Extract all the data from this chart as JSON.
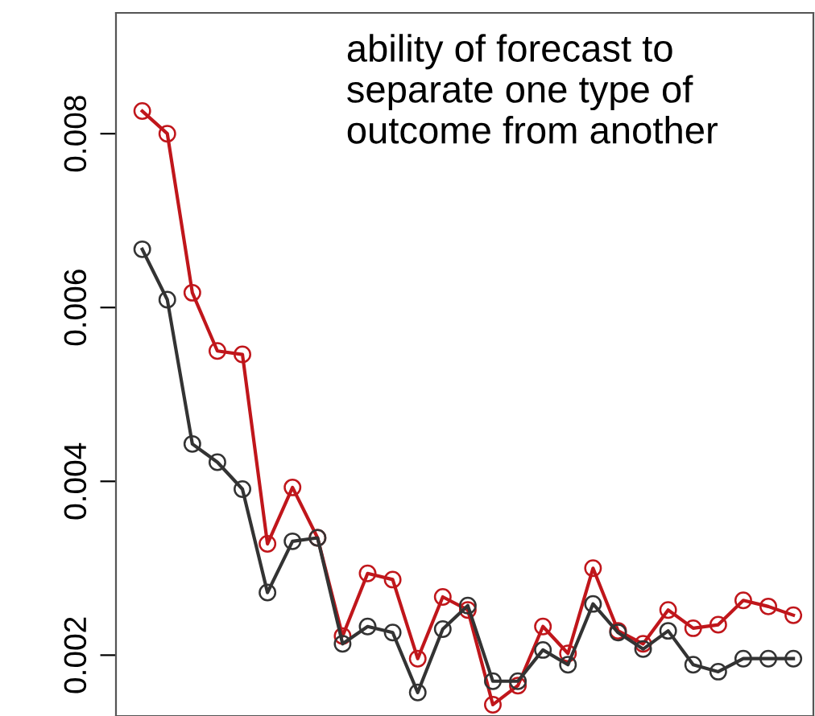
{
  "chart_data": {
    "type": "line",
    "categories": [
      null,
      null,
      null,
      null,
      null,
      null,
      null,
      null,
      null,
      null,
      null,
      null,
      null,
      null,
      null,
      null,
      null,
      null,
      null,
      null,
      null,
      null,
      null,
      null,
      null,
      null,
      null
    ],
    "series": [
      {
        "color": "#c0161b",
        "values": [
          0.00826,
          0.008,
          0.00617,
          0.0055,
          0.00546,
          0.00328,
          0.00393,
          0.00335,
          0.00222,
          0.00294,
          0.00287,
          0.00196,
          0.00267,
          0.00252,
          0.00143,
          0.00165,
          0.00233,
          0.00202,
          0.003,
          0.00228,
          0.00213,
          0.00252,
          0.00231,
          0.00235,
          0.00263,
          0.00256,
          0.00246
        ]
      },
      {
        "color": "#333333",
        "values": [
          0.00667,
          0.00609,
          0.00443,
          0.00422,
          0.00391,
          0.00272,
          0.00331,
          0.00335,
          0.00213,
          0.00233,
          0.00226,
          0.00157,
          0.0023,
          0.00257,
          0.0017,
          0.0017,
          0.00206,
          0.00189,
          0.00259,
          0.00226,
          0.00207,
          0.00228,
          0.00189,
          0.00181,
          0.00196,
          0.00196,
          0.00196
        ]
      }
    ],
    "ylim": [
      0.0013,
      0.00939
    ],
    "yticks": [
      0.002,
      0.004,
      0.006,
      0.008
    ],
    "marker": "circle",
    "line_style": "solid",
    "grid": false,
    "tick_labels": "y",
    "annotations": [
      "ability of forecast to\nseparate one type of\noutcome from another"
    ]
  }
}
